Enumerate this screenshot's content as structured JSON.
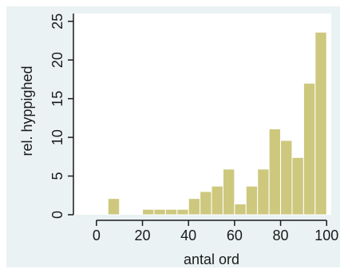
{
  "chart_data": {
    "type": "bar",
    "title": "",
    "xlabel": "antal ord",
    "ylabel": "rel. hyppighed",
    "xlim": [
      -10,
      102
    ],
    "ylim": [
      0,
      26
    ],
    "xticks": [
      0,
      20,
      40,
      60,
      80,
      100
    ],
    "yticks": [
      0,
      5,
      10,
      15,
      20,
      25
    ],
    "bin_width": 5,
    "bins": [
      {
        "x0": 5,
        "x1": 10,
        "value": 2.1
      },
      {
        "x0": 20,
        "x1": 25,
        "value": 0.7
      },
      {
        "x0": 25,
        "x1": 30,
        "value": 0.7
      },
      {
        "x0": 30,
        "x1": 35,
        "value": 0.7
      },
      {
        "x0": 35,
        "x1": 40,
        "value": 0.7
      },
      {
        "x0": 40,
        "x1": 45,
        "value": 2.1
      },
      {
        "x0": 45,
        "x1": 50,
        "value": 3.0
      },
      {
        "x0": 50,
        "x1": 55,
        "value": 3.7
      },
      {
        "x0": 55,
        "x1": 60,
        "value": 5.9
      },
      {
        "x0": 60,
        "x1": 65,
        "value": 1.4
      },
      {
        "x0": 65,
        "x1": 70,
        "value": 3.7
      },
      {
        "x0": 70,
        "x1": 75,
        "value": 5.9
      },
      {
        "x0": 75,
        "x1": 80,
        "value": 11.1
      },
      {
        "x0": 80,
        "x1": 85,
        "value": 9.6
      },
      {
        "x0": 85,
        "x1": 90,
        "value": 7.4
      },
      {
        "x0": 90,
        "x1": 95,
        "value": 17.0
      },
      {
        "x0": 95,
        "x1": 100,
        "value": 23.6
      }
    ],
    "grid": false,
    "legend": "none"
  },
  "colors": {
    "page_background": "#ffffff",
    "outer_background": "#eaf2f3",
    "plot_background": "#ffffff",
    "bar_fill": "#cdc87e",
    "bar_stroke": "#ffffff",
    "axis": "#1a1a1a"
  }
}
